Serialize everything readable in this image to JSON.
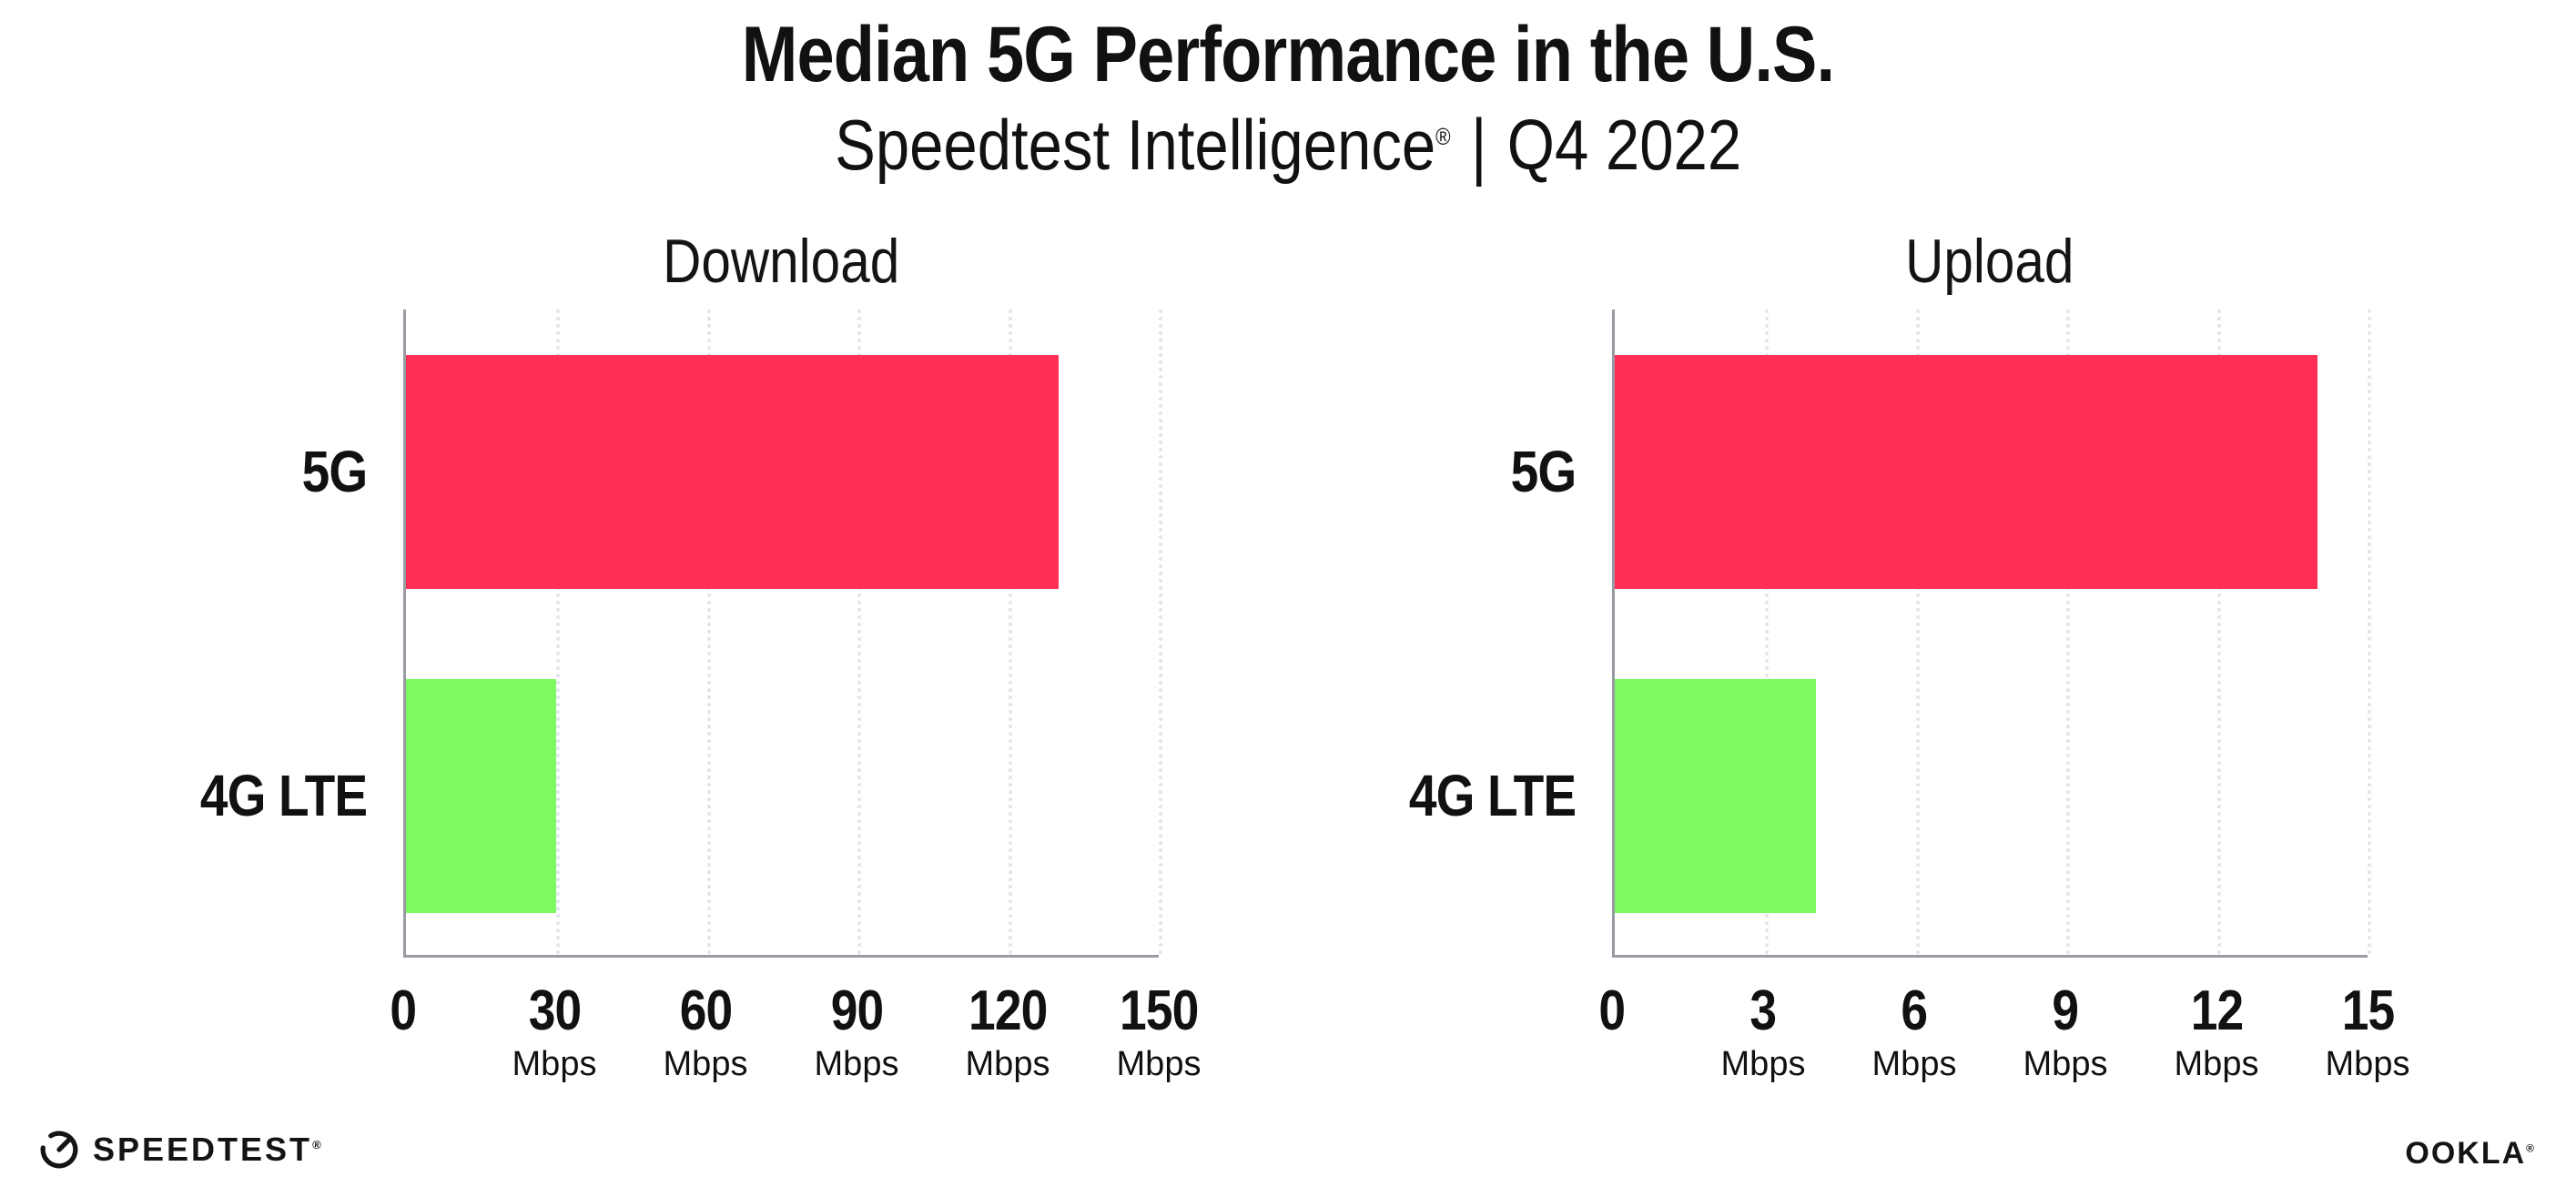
{
  "header": {
    "title": "Median 5G Performance in the U.S.",
    "subtitle": {
      "brand": "Speedtest Intelligence",
      "registered_mark": "®",
      "separator": "|",
      "period": "Q4 2022"
    }
  },
  "footer": {
    "speedtest_wordmark": "SPEEDTEST",
    "speedtest_mark": "®",
    "speedtest_icon": "speedtest-gauge-icon",
    "ookla_wordmark": "OOKLA",
    "ookla_mark": "®"
  },
  "colors": {
    "bar_5g": "#ff2f56",
    "bar_4g_lte": "#7dfa60",
    "gridline": "#e3e3ee",
    "axis": "#9a9aa3",
    "text": "#111111"
  },
  "chart_data": [
    {
      "type": "bar",
      "orientation": "horizontal",
      "title": "Download",
      "categories": [
        "5G",
        "4G LTE"
      ],
      "values": [
        130,
        30
      ],
      "unit": "Mbps",
      "xlim": [
        0,
        150
      ],
      "xticks": [
        0,
        30,
        60,
        90,
        120,
        150
      ],
      "bar_colors": [
        "#ff2f56",
        "#7dfa60"
      ],
      "grid": "dotted-vertical",
      "legend": "none"
    },
    {
      "type": "bar",
      "orientation": "horizontal",
      "title": "Upload",
      "categories": [
        "5G",
        "4G LTE"
      ],
      "values": [
        14,
        4
      ],
      "unit": "Mbps",
      "xlim": [
        0,
        15
      ],
      "xticks": [
        0,
        3,
        6,
        9,
        12,
        15
      ],
      "bar_colors": [
        "#ff2f56",
        "#7dfa60"
      ],
      "grid": "dotted-vertical",
      "legend": "none"
    }
  ]
}
